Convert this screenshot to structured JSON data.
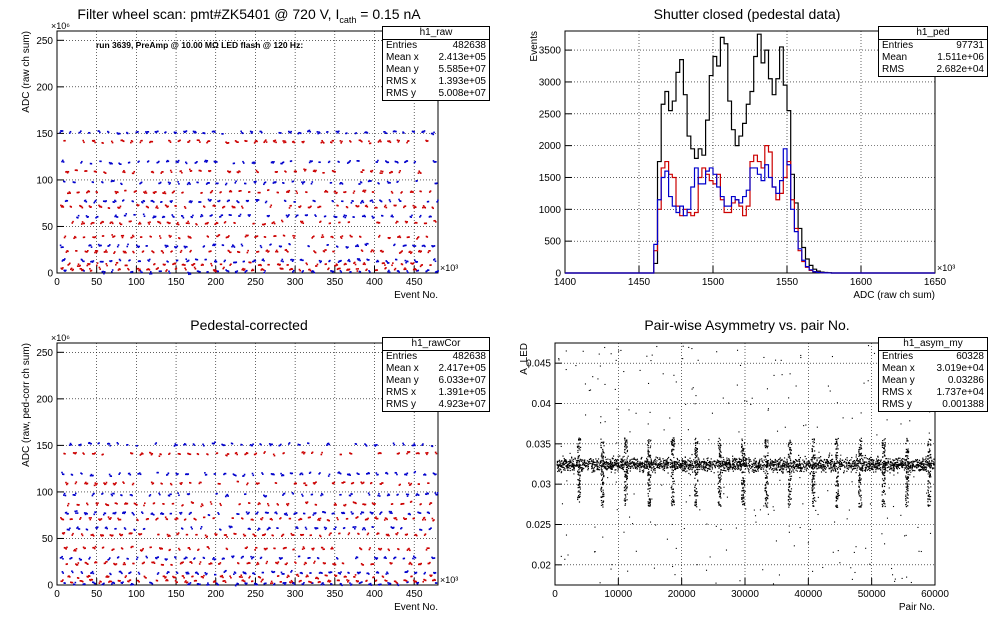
{
  "pads": [
    {
      "title_pre": "Filter wheel scan: pmt#ZK5401 @  720 V, I",
      "title_sub": "cath",
      "title_post": " = 0.15 nA",
      "annotation": "run 3639, PreAmp @ 10.00 MΩ LED flash @  120 Hz:",
      "stats": {
        "name": "h1_raw",
        "rows": [
          [
            "Entries",
            "482638"
          ],
          [
            "Mean x",
            "2.413e+05"
          ],
          [
            "Mean y",
            "5.585e+07"
          ],
          [
            "RMS x",
            "1.393e+05"
          ],
          [
            "RMS y",
            "5.008e+07"
          ]
        ]
      }
    },
    {
      "title": "Shutter closed (pedestal data)",
      "stats": {
        "name": "h1_ped",
        "rows": [
          [
            "Entries",
            "97731"
          ],
          [
            "Mean",
            "1.511e+06"
          ],
          [
            "RMS",
            "2.682e+04"
          ]
        ]
      }
    },
    {
      "title": "Pedestal-corrected",
      "stats": {
        "name": "h1_rawCor",
        "rows": [
          [
            "Entries",
            "482638"
          ],
          [
            "Mean x",
            "2.417e+05"
          ],
          [
            "Mean y",
            "6.033e+07"
          ],
          [
            "RMS x",
            "1.391e+05"
          ],
          [
            "RMS y",
            "4.923e+07"
          ]
        ]
      }
    },
    {
      "title": "Pair-wise Asymmetry vs. pair No.",
      "stats": {
        "name": "h1_asym_my",
        "rows": [
          [
            "Entries",
            "60328"
          ],
          [
            "Mean x",
            "3.019e+04"
          ],
          [
            "Mean y",
            "0.03286"
          ],
          [
            "RMS x",
            "1.737e+04"
          ],
          [
            "RMS y",
            "0.001388"
          ]
        ]
      }
    }
  ],
  "chart_data": [
    {
      "type": "scatter",
      "title": "Filter wheel scan: pmt#ZK5401 @  720 V, I_cath = 0.15 nA",
      "xlabel": "Event No.",
      "x_exponent": "×10³",
      "ylabel": "ADC (raw ch sum)",
      "y_exponent": "×10⁶",
      "xlim": [
        0,
        480
      ],
      "ylim": [
        0,
        260
      ],
      "xticks": [
        0,
        50,
        100,
        150,
        200,
        250,
        300,
        350,
        400,
        450
      ],
      "yticks": [
        0,
        50,
        100,
        150,
        200,
        250
      ],
      "grid": true,
      "series": [
        {
          "color": "#0000cc",
          "levels": [
            152,
            120,
            98,
            78,
            62,
            30,
            14,
            2
          ]
        },
        {
          "color": "#cc0000",
          "levels": [
            142,
            110,
            88,
            72,
            55,
            40,
            24,
            10,
            5
          ]
        }
      ]
    },
    {
      "type": "step",
      "title": "Shutter closed (pedestal data)",
      "xlabel": "ADC (raw ch sum)",
      "x_exponent": "×10³",
      "ylabel": "Events",
      "xlim": [
        1400,
        1650
      ],
      "ylim": [
        0,
        3800
      ],
      "xticks": [
        1400,
        1450,
        1500,
        1550,
        1600,
        1650
      ],
      "yticks": [
        0,
        500,
        1000,
        1500,
        2000,
        2500,
        3000,
        3500
      ],
      "grid": true,
      "bin_start": 1460,
      "bin_width": 2.5,
      "series": [
        {
          "color": "#000000",
          "values": [
            150,
            1750,
            2650,
            2850,
            2550,
            2700,
            3150,
            3350,
            2800,
            2150,
            1950,
            1800,
            1950,
            1850,
            2400,
            3100,
            3400,
            3250,
            3700,
            3600,
            2700,
            2250,
            2000,
            2150,
            2350,
            2650,
            2850,
            3400,
            3750,
            3300,
            3500,
            3050,
            2800,
            3050,
            3550,
            2950,
            2550,
            1550,
            1100,
            700,
            400,
            220,
            120,
            60,
            30,
            15,
            8,
            4
          ]
        },
        {
          "color": "#cc0000",
          "values": [
            350,
            1000,
            1650,
            1750,
            1550,
            1500,
            1050,
            900,
            1000,
            950,
            900,
            950,
            1500,
            1650,
            1550,
            1450,
            1400,
            1550,
            1150,
            950,
            950,
            1100,
            1150,
            1050,
            900,
            1050,
            1750,
            1850,
            1750,
            1650,
            2000,
            1900,
            1350,
            1150,
            1250,
            1500,
            1750,
            1150,
            700,
            350,
            180,
            90,
            40,
            20,
            10,
            5,
            2,
            1
          ]
        },
        {
          "color": "#0000cc",
          "values": [
            450,
            1150,
            1500,
            1600,
            1200,
            1050,
            950,
            1050,
            900,
            1000,
            1350,
            1650,
            1400,
            1400,
            1600,
            1650,
            1550,
            1350,
            1200,
            1050,
            1050,
            1200,
            1150,
            1100,
            1200,
            1300,
            1650,
            1650,
            1550,
            1450,
            1700,
            1500,
            1350,
            1250,
            1450,
            1950,
            1700,
            1000,
            650,
            380,
            200,
            100,
            50,
            20,
            10,
            5,
            2,
            1
          ]
        }
      ]
    },
    {
      "type": "scatter",
      "title": "Pedestal-corrected",
      "xlabel": "Event No.",
      "x_exponent": "×10³",
      "ylabel": "ADC (raw, ped-corr ch sum)",
      "y_exponent": "×10⁶",
      "xlim": [
        0,
        480
      ],
      "ylim": [
        0,
        260
      ],
      "xticks": [
        0,
        50,
        100,
        150,
        200,
        250,
        300,
        350,
        400,
        450
      ],
      "yticks": [
        0,
        50,
        100,
        150,
        200,
        250
      ],
      "grid": true,
      "series": [
        {
          "color": "#0000cc",
          "levels": [
            152,
            120,
            98,
            78,
            62,
            30,
            14,
            2
          ]
        },
        {
          "color": "#cc0000",
          "levels": [
            142,
            110,
            88,
            72,
            55,
            40,
            24,
            10,
            5
          ]
        }
      ]
    },
    {
      "type": "scatter",
      "title": "Pair-wise Asymmetry vs. pair No.",
      "xlabel": "Pair No.",
      "ylabel": "A_LED",
      "xlim": [
        0,
        60000
      ],
      "ylim": [
        0.0175,
        0.0475
      ],
      "xticks": [
        0,
        10000,
        20000,
        30000,
        40000,
        50000,
        60000
      ],
      "yticks": [
        0.02,
        0.025,
        0.03,
        0.035,
        0.04,
        0.045
      ],
      "grid": true,
      "band_center": 0.0325,
      "band_halfwidth": 0.0008,
      "spike_x": [
        3700,
        7400,
        11100,
        14800,
        18500,
        22200,
        25900,
        29600,
        33300,
        37000,
        40700,
        44400,
        48100,
        51800,
        55500,
        59000
      ]
    }
  ]
}
